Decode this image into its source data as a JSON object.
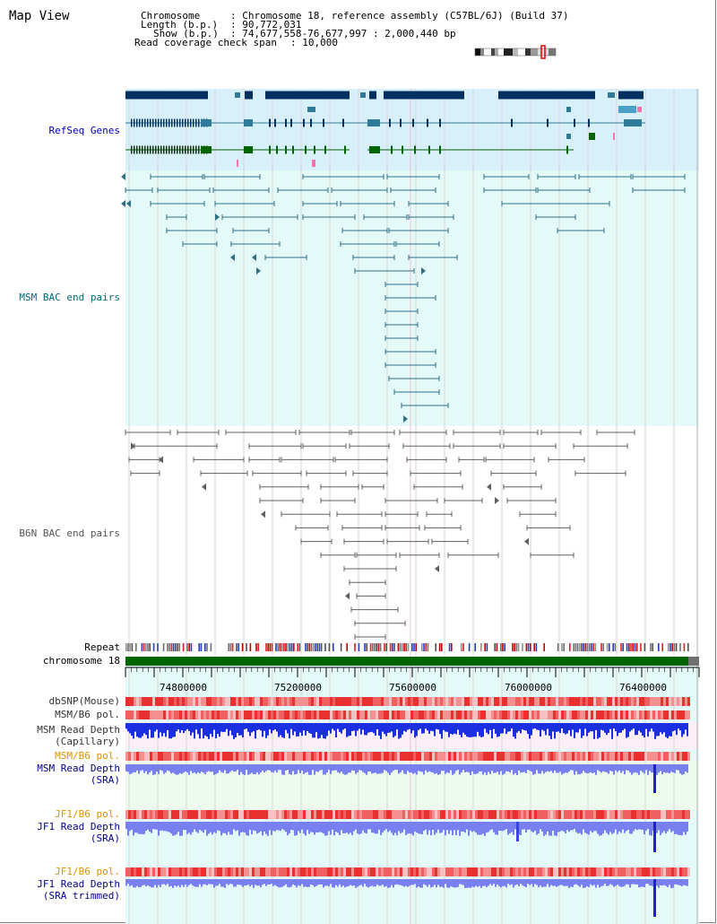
{
  "map_title": "Map View",
  "header": {
    "chromosome_key": "Chromosome",
    "chromosome_val": ": Chromosome 18, reference assembly (C57BL/6J) (Build 37)",
    "length_key": "Length (b.p.)",
    "length_val": ": 90,772,031",
    "show_key": "Show (b.p.)",
    "show_val": ": 74,677,558-76,677,997 : 2,000,440 bp",
    "coverage_key": "Read coverage check span",
    "coverage_val": ": 10,000"
  },
  "tracks": {
    "refseq": "RefSeq Genes",
    "msm_bac": "MSM BAC end pairs",
    "b6n_bac": "B6N BAC end pairs",
    "repeat": "Repeat",
    "chromosome": "chromosome 18",
    "dbsnp": "dbSNP(Mouse)",
    "msm_b6_pol": "MSM/B6 pol.",
    "msm_depth_cap_1": "MSM Read Depth",
    "msm_depth_cap_2": "(Capillary)",
    "msm_b6_pol2": "MSM/B6 pol.",
    "msm_depth_sra_1": "MSM Read Depth",
    "msm_depth_sra_2": "(SRA)",
    "jf1_b6_pol": "JF1/B6 pol.",
    "jf1_depth_sra_1": "JF1 Read Depth",
    "jf1_depth_sra_2": "(SRA)",
    "jf1_b6_pol2": "JF1/B6 pol.",
    "jf1_depth_trim_1": "JF1 Read Depth",
    "jf1_depth_trim_2": "(SRA trimmed)"
  },
  "ruler": [
    "74800000",
    "75200000",
    "75600000",
    "76000000",
    "76400000"
  ],
  "colors": {
    "refseq_bg": "#d8f0fa",
    "msm_bg": "#e4faf8",
    "refseq_label": "#0000c0",
    "msm_label": "#006a7a",
    "b6n_label": "#555555",
    "orange_label": "#e09000",
    "navy_label": "#000090",
    "chromosome_bar": "#006400",
    "gene_dark": "#003060",
    "gene_teal": "#2e7a98",
    "gene_green": "#006400"
  }
}
